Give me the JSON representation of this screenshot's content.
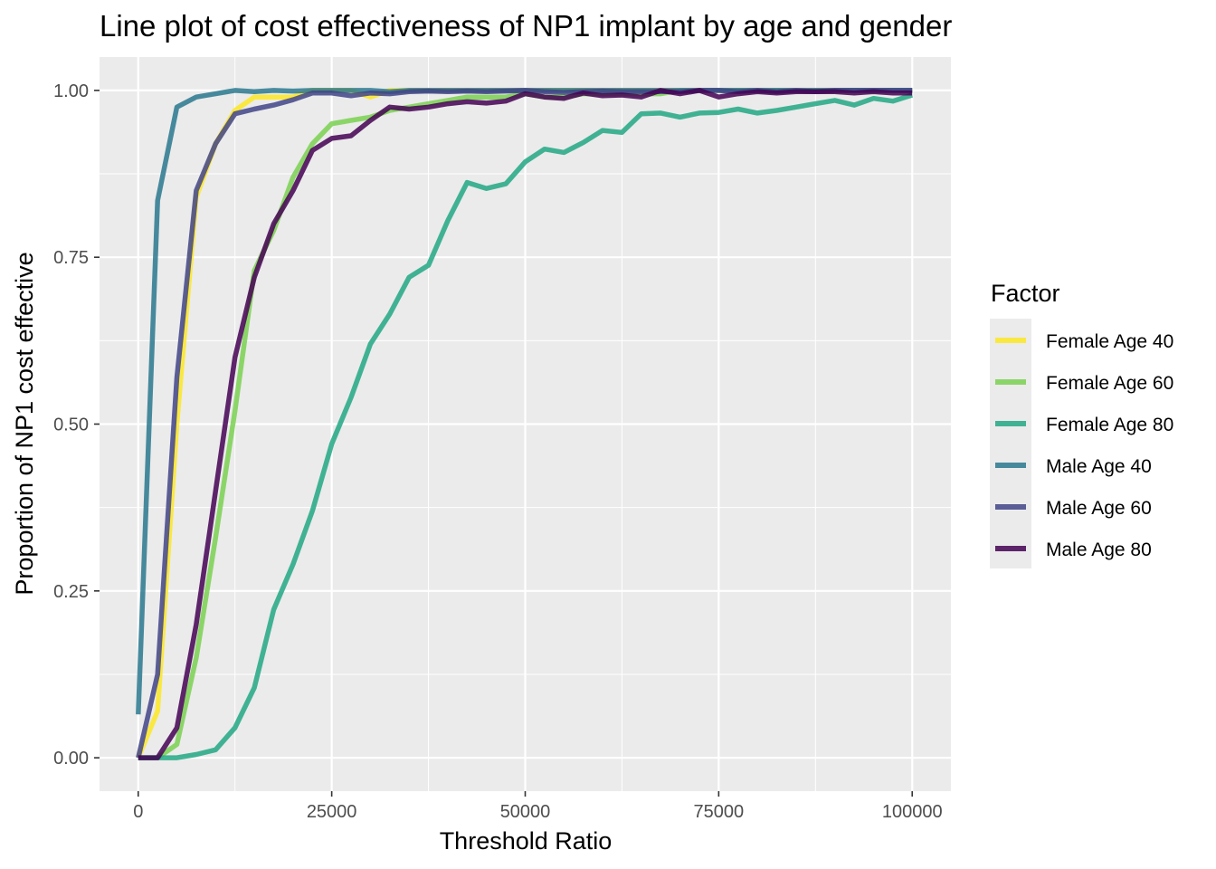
{
  "chart_data": {
    "type": "line",
    "title": "Line plot of cost effectiveness of NP1 implant by age and gender",
    "xlabel": "Threshold Ratio",
    "ylabel": "Proportion of NP1 cost effective",
    "xlim": [
      -5000,
      105000
    ],
    "ylim": [
      -0.05,
      1.05
    ],
    "x_ticks": [
      0,
      25000,
      50000,
      75000,
      100000
    ],
    "x_tick_labels": [
      "0",
      "25000",
      "50000",
      "75000",
      "100000"
    ],
    "y_ticks": [
      0,
      0.25,
      0.5,
      0.75,
      1
    ],
    "y_tick_labels": [
      "0.00",
      "0.25",
      "0.50",
      "0.75",
      "1.00"
    ],
    "grid": true,
    "legend": {
      "title": "Factor",
      "position": "right"
    },
    "x": [
      0,
      2500,
      5000,
      7500,
      10000,
      12500,
      15000,
      17500,
      20000,
      22500,
      25000,
      27500,
      30000,
      32500,
      35000,
      37500,
      40000,
      42500,
      45000,
      47500,
      50000,
      52500,
      55000,
      57500,
      60000,
      62500,
      65000,
      67500,
      70000,
      72500,
      75000,
      77500,
      80000,
      82500,
      85000,
      87500,
      90000,
      92500,
      95000,
      97500,
      100000
    ],
    "series": [
      {
        "name": "Female Age 40",
        "color": "#fde725",
        "values": [
          0,
          0.07,
          0.5,
          0.84,
          0.92,
          0.97,
          0.99,
          0.99,
          0.99,
          1.0,
          1.0,
          1.0,
          0.99,
          1.0,
          1.0,
          1.0,
          1.0,
          1.0,
          1.0,
          1.0,
          1.0,
          1.0,
          1.0,
          1.0,
          1.0,
          1.0,
          1.0,
          1.0,
          1.0,
          1.0,
          1.0,
          1.0,
          1.0,
          1.0,
          1.0,
          1.0,
          1.0,
          1.0,
          1.0,
          1.0,
          1.0
        ]
      },
      {
        "name": "Female Age 60",
        "color": "#7ad151",
        "values": [
          0,
          0,
          0.02,
          0.15,
          0.33,
          0.52,
          0.73,
          0.79,
          0.87,
          0.92,
          0.95,
          0.955,
          0.96,
          0.97,
          0.975,
          0.98,
          0.985,
          0.99,
          0.99,
          0.99,
          0.995,
          0.99,
          0.99,
          0.995,
          0.995,
          0.995,
          0.995,
          0.995,
          1.0,
          1.0,
          1.0,
          1.0,
          1.0,
          1.0,
          1.0,
          1.0,
          1.0,
          1.0,
          1.0,
          1.0,
          1.0
        ]
      },
      {
        "name": "Female Age 80",
        "color": "#22a884",
        "values": [
          0,
          0,
          0,
          0.005,
          0.012,
          0.045,
          0.105,
          0.222,
          0.29,
          0.37,
          0.47,
          0.54,
          0.62,
          0.665,
          0.72,
          0.738,
          0.805,
          0.862,
          0.853,
          0.86,
          0.893,
          0.912,
          0.907,
          0.922,
          0.94,
          0.937,
          0.965,
          0.966,
          0.96,
          0.966,
          0.967,
          0.972,
          0.966,
          0.97,
          0.975,
          0.98,
          0.985,
          0.978,
          0.988,
          0.984,
          0.993
        ]
      },
      {
        "name": "Male Age 40",
        "color": "#2a788e",
        "values": [
          0.065,
          0.835,
          0.975,
          0.99,
          0.995,
          1.0,
          0.998,
          1.0,
          0.999,
          1.0,
          1.0,
          1.0,
          1.0,
          0.998,
          1.0,
          1.0,
          1.0,
          1.0,
          1.0,
          1.0,
          1.0,
          1.0,
          1.0,
          1.0,
          1.0,
          1.0,
          1.0,
          1.0,
          1.0,
          1.0,
          1.0,
          1.0,
          1.0,
          1.0,
          1.0,
          1.0,
          1.0,
          1.0,
          1.0,
          1.0,
          1.0
        ]
      },
      {
        "name": "Male Age 60",
        "color": "#414487",
        "values": [
          0,
          0.125,
          0.57,
          0.85,
          0.92,
          0.965,
          0.972,
          0.978,
          0.986,
          0.996,
          0.996,
          0.992,
          0.996,
          0.995,
          0.998,
          0.999,
          0.998,
          0.999,
          0.998,
          0.999,
          1.0,
          0.998,
          0.997,
          0.998,
          0.999,
          0.998,
          0.998,
          0.998,
          0.998,
          1.0,
          1.0,
          0.998,
          1.0,
          0.998,
          1.0,
          0.998,
          1.0,
          1.0,
          1.0,
          1.0,
          1.0
        ]
      },
      {
        "name": "Male Age 80",
        "color": "#440154",
        "values": [
          0,
          0,
          0.045,
          0.2,
          0.4,
          0.6,
          0.72,
          0.8,
          0.85,
          0.91,
          0.928,
          0.932,
          0.955,
          0.975,
          0.972,
          0.975,
          0.98,
          0.983,
          0.981,
          0.984,
          0.995,
          0.99,
          0.988,
          0.996,
          0.992,
          0.993,
          0.99,
          1.0,
          0.995,
          1.0,
          0.99,
          0.995,
          0.998,
          0.996,
          0.998,
          0.998,
          0.998,
          0.996,
          0.998,
          0.996,
          0.996
        ]
      }
    ]
  }
}
